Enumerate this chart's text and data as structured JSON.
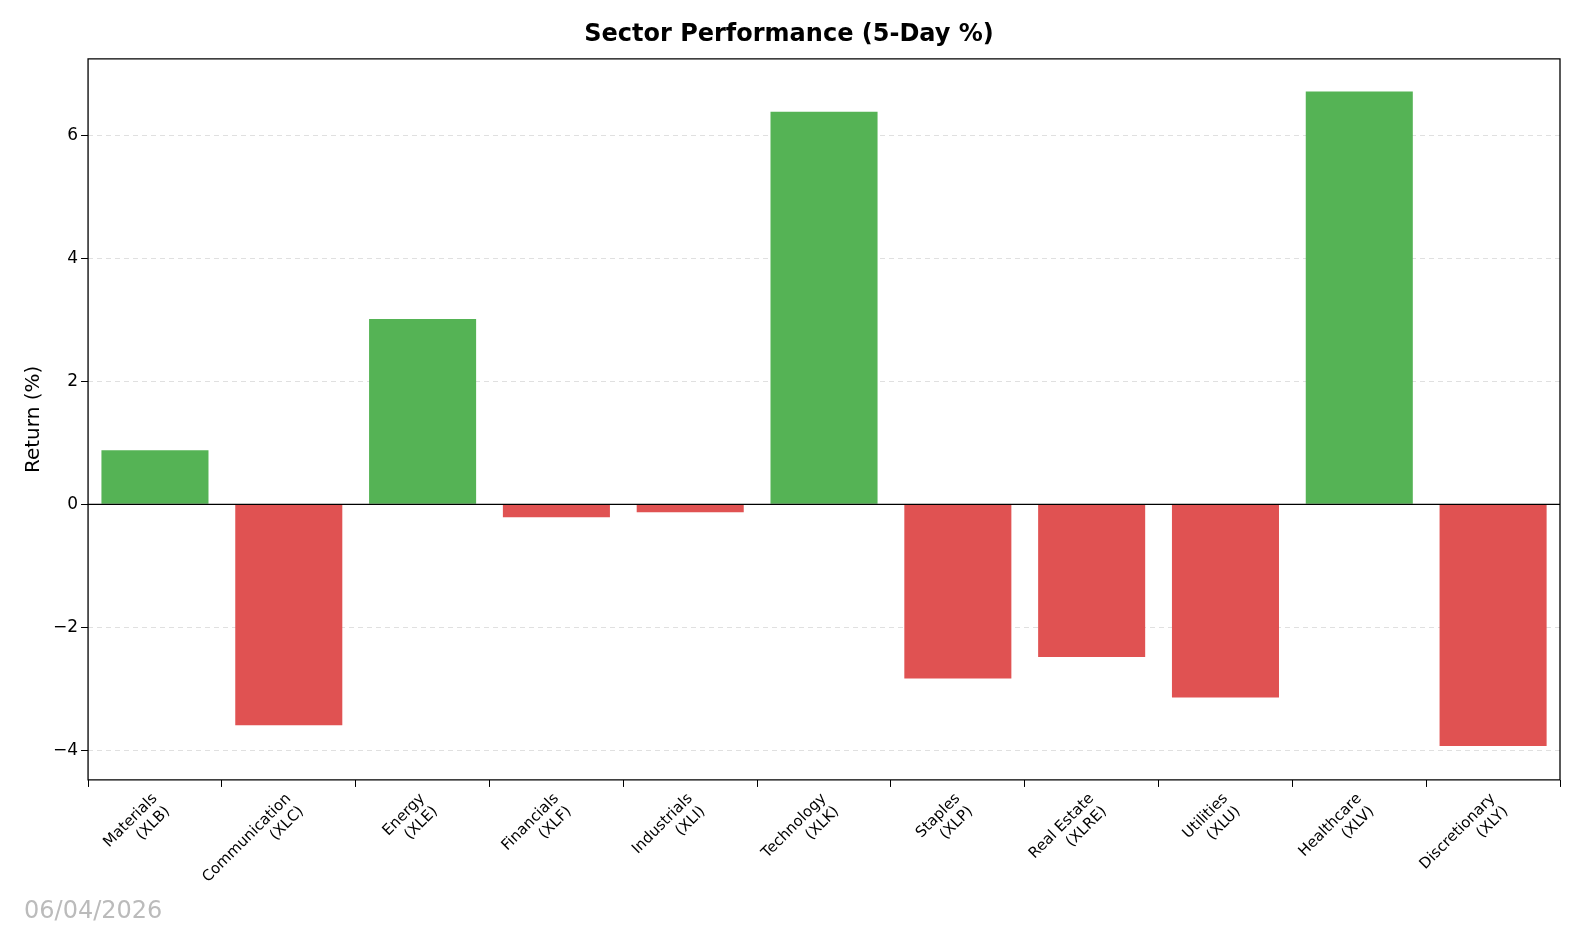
{
  "chart_data": {
    "type": "bar",
    "title": "Sector Performance (5-Day %)",
    "ylabel": "Return (%)",
    "categories": [
      "Materials\n(XLB)",
      "Communication\n(XLC)",
      "Energy\n(XLE)",
      "Financials\n(XLF)",
      "Industrials\n(XLI)",
      "Technology\n(XLK)",
      "Staples\n(XLP)",
      "Real Estate\n(XLRE)",
      "Utilities\n(XLU)",
      "Healthcare\n(XLV)",
      "Discretionary\n(XLY)"
    ],
    "values": [
      0.88,
      -3.59,
      3.01,
      -0.21,
      -0.13,
      6.38,
      -2.83,
      -2.48,
      -3.14,
      6.71,
      -3.93
    ],
    "colors": [
      "#55b355",
      "#e05252",
      "#55b355",
      "#e05252",
      "#e05252",
      "#55b355",
      "#e05252",
      "#e05252",
      "#e05252",
      "#55b355",
      "#e05252"
    ],
    "ylim": [
      -4.48,
      7.24
    ],
    "yticks": [
      -4,
      -2,
      0,
      2,
      4,
      6
    ],
    "grid": "y",
    "ref_lines": [
      {
        "axis": "y",
        "value": 0,
        "color": "#000000"
      }
    ],
    "annotations": [
      "06/04/2026"
    ]
  }
}
